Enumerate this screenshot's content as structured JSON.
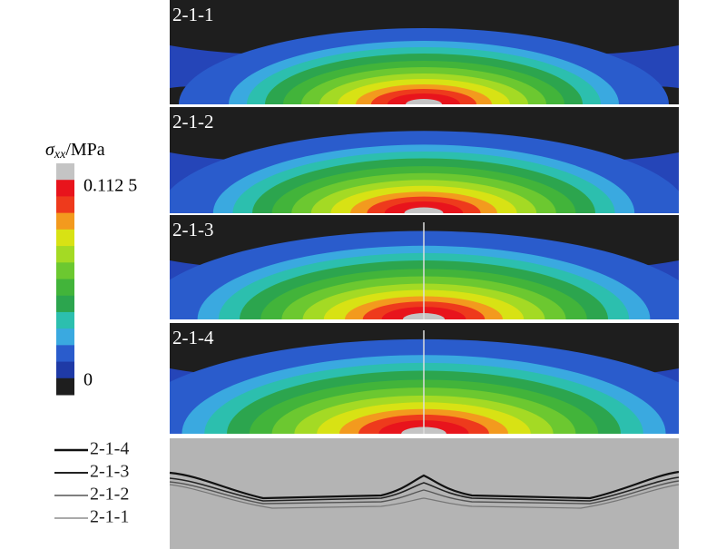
{
  "figure": {
    "colorbar": {
      "label": "σ",
      "label_subscript": "xx",
      "label_unit": "/MPa",
      "max_label": "0.112 5",
      "min_label": "0",
      "colors": [
        "#c4c4c4",
        "#e8141c",
        "#ee3a1c",
        "#f39a1e",
        "#d8e214",
        "#a4da24",
        "#6cc830",
        "#42b43a",
        "#2ca54e",
        "#2cbfae",
        "#3aa9e0",
        "#2a5ccc",
        "#1f3aa6",
        "#1e1e1e"
      ]
    },
    "panels": [
      {
        "label": "2-1-1"
      },
      {
        "label": "2-1-2"
      },
      {
        "label": "2-1-3"
      },
      {
        "label": "2-1-4"
      }
    ],
    "profile_legend": [
      {
        "name": "2-1-4",
        "color": "#111111"
      },
      {
        "name": "2-1-3",
        "color": "#222222"
      },
      {
        "name": "2-1-2",
        "color": "#555555"
      },
      {
        "name": "2-1-1",
        "color": "#777777"
      }
    ]
  }
}
